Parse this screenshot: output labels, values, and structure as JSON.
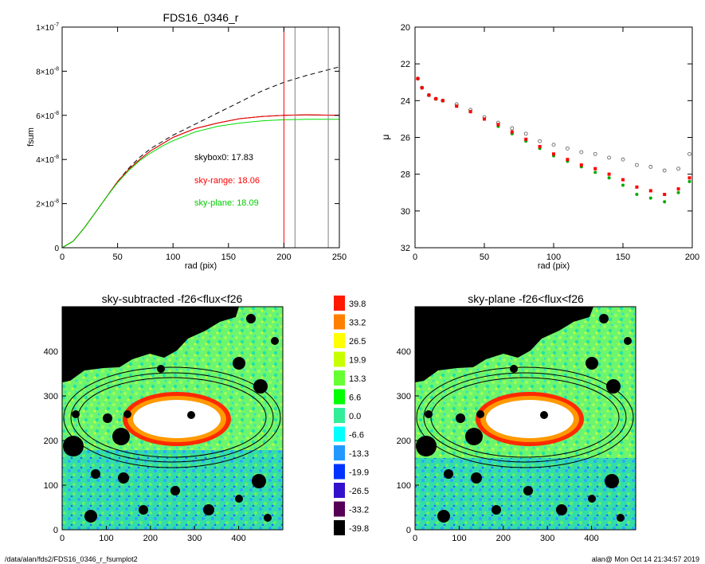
{
  "footer": {
    "path": "/data/alan/fds2/FDS16_0346_r_fsumplot2",
    "stamp": "alan@  Mon Oct 14 21:34:57 2019"
  },
  "chart_data": [
    {
      "type": "line",
      "title": "FDS16_0346_r",
      "xlabel": "rad (pix)",
      "ylabel": "fsum",
      "xlim": [
        0,
        250
      ],
      "ylim": [
        0,
        1e-07
      ],
      "xticks": [
        0,
        50,
        100,
        150,
        200,
        250
      ],
      "ytick_values": [
        0,
        2e-08,
        4e-08,
        6e-08,
        8e-08,
        1e-07
      ],
      "ytick_mantissas": [
        "0",
        "2×10",
        "4×10",
        "6×10",
        "8×10",
        "1×10"
      ],
      "ytick_exponent": "-8",
      "ytick_exponent_top": "-7",
      "vlines": [
        {
          "x": 200,
          "color": "#ff0000"
        },
        {
          "x": 210,
          "color": "#808080"
        },
        {
          "x": 240,
          "color": "#808080"
        }
      ],
      "annotations": [
        {
          "text": "skybox0: 17.83",
          "color": "#000000"
        },
        {
          "text": "sky-range: 18.06",
          "color": "#ff0000"
        },
        {
          "text": "sky-plane: 18.09",
          "color": "#00cc00"
        }
      ],
      "series": [
        {
          "style": "dashed",
          "color": "#000000",
          "x": [
            0,
            10,
            20,
            30,
            40,
            50,
            60,
            70,
            80,
            90,
            100,
            120,
            140,
            160,
            180,
            200,
            220,
            250
          ],
          "y": [
            0,
            3e-09,
            9e-09,
            1.6e-08,
            2.3e-08,
            3e-08,
            3.6e-08,
            4.1e-08,
            4.5e-08,
            4.8e-08,
            5.1e-08,
            5.6e-08,
            6.1e-08,
            6.6e-08,
            7.1e-08,
            7.5e-08,
            7.8e-08,
            8.2e-08
          ]
        },
        {
          "style": "solid",
          "color": "#000000",
          "x": [
            0,
            10,
            20,
            30,
            40,
            50,
            60,
            70,
            80,
            90,
            100,
            120,
            140,
            160,
            180,
            200,
            220,
            250
          ],
          "y": [
            0,
            3e-09,
            9e-09,
            1.6e-08,
            2.3e-08,
            3e-08,
            3.55e-08,
            4e-08,
            4.4e-08,
            4.7e-08,
            5e-08,
            5.4e-08,
            5.65e-08,
            5.85e-08,
            5.95e-08,
            6e-08,
            6.02e-08,
            6e-08
          ]
        },
        {
          "style": "solid",
          "color": "#ff0000",
          "x": [
            0,
            10,
            20,
            30,
            40,
            50,
            60,
            70,
            80,
            90,
            100,
            120,
            140,
            160,
            180,
            200,
            220,
            250
          ],
          "y": [
            0,
            3e-09,
            9e-09,
            1.6e-08,
            2.3e-08,
            3e-08,
            3.55e-08,
            4e-08,
            4.4e-08,
            4.7e-08,
            5e-08,
            5.4e-08,
            5.65e-08,
            5.85e-08,
            5.95e-08,
            6e-08,
            6.03e-08,
            6e-08
          ]
        },
        {
          "style": "solid",
          "color": "#00dd00",
          "x": [
            0,
            10,
            20,
            30,
            40,
            50,
            60,
            70,
            80,
            90,
            100,
            120,
            140,
            160,
            180,
            200,
            220,
            250
          ],
          "y": [
            0,
            3e-09,
            9e-09,
            1.6e-08,
            2.3e-08,
            2.95e-08,
            3.5e-08,
            3.95e-08,
            4.3e-08,
            4.6e-08,
            4.85e-08,
            5.25e-08,
            5.5e-08,
            5.65e-08,
            5.75e-08,
            5.8e-08,
            5.82e-08,
            5.82e-08
          ]
        }
      ]
    },
    {
      "type": "scatter",
      "xlabel": "rad (pix)",
      "ylabel": "μ",
      "xlim": [
        0,
        200
      ],
      "ylim": [
        32,
        20
      ],
      "xticks": [
        0,
        50,
        100,
        150,
        200
      ],
      "yticks": [
        20,
        22,
        24,
        26,
        28,
        30,
        32
      ],
      "series": [
        {
          "marker": "open-circle",
          "color": "#555555",
          "x": [
            2,
            5,
            10,
            15,
            20,
            30,
            40,
            50,
            60,
            70,
            80,
            90,
            100,
            110,
            120,
            130,
            140,
            150,
            160,
            170,
            180,
            190,
            198
          ],
          "y": [
            22.8,
            23.3,
            23.7,
            23.9,
            24.0,
            24.2,
            24.5,
            24.9,
            25.2,
            25.5,
            25.8,
            26.2,
            26.4,
            26.6,
            26.8,
            26.9,
            27.1,
            27.2,
            27.5,
            27.6,
            27.8,
            27.7,
            26.9
          ]
        },
        {
          "marker": "filled-circle",
          "color": "#00aa00",
          "x": [
            2,
            5,
            10,
            15,
            20,
            30,
            40,
            50,
            60,
            70,
            80,
            90,
            100,
            110,
            120,
            130,
            140,
            150,
            160,
            170,
            180,
            190,
            198
          ],
          "y": [
            22.8,
            23.3,
            23.7,
            23.9,
            24.0,
            24.3,
            24.6,
            25.0,
            25.4,
            25.8,
            26.2,
            26.6,
            27.0,
            27.3,
            27.6,
            27.9,
            28.2,
            28.6,
            29.1,
            29.3,
            29.5,
            29.0,
            28.4
          ]
        },
        {
          "marker": "filled-square",
          "color": "#ff0000",
          "x": [
            2,
            5,
            10,
            15,
            20,
            30,
            40,
            50,
            60,
            70,
            80,
            90,
            100,
            110,
            120,
            130,
            140,
            150,
            160,
            170,
            180,
            190,
            198
          ],
          "y": [
            22.8,
            23.3,
            23.7,
            23.9,
            24.0,
            24.3,
            24.6,
            25.0,
            25.3,
            25.7,
            26.1,
            26.5,
            26.9,
            27.2,
            27.5,
            27.7,
            28.0,
            28.3,
            28.7,
            28.9,
            29.1,
            28.8,
            28.2
          ]
        }
      ]
    },
    {
      "type": "heatmap",
      "title": "sky-subtracted -f26<flux<f26",
      "xlim": [
        0,
        500
      ],
      "ylim": [
        0,
        500
      ],
      "xticks": [
        0,
        100,
        200,
        300,
        400
      ],
      "yticks": [
        0,
        100,
        200,
        300,
        400
      ]
    },
    {
      "type": "heatmap",
      "title": "sky-plane -f26<flux<f26",
      "xlim": [
        0,
        500
      ],
      "ylim": [
        0,
        500
      ],
      "xticks": [
        0,
        100,
        200,
        300,
        400
      ],
      "yticks": [
        0,
        100,
        200,
        300,
        400
      ]
    },
    {
      "type": "colorbar",
      "labels": [
        "39.8",
        "33.2",
        "26.5",
        "19.9",
        "13.3",
        "6.6",
        "0.0",
        "-6.6",
        "-13.3",
        "-19.9",
        "-26.5",
        "-33.2",
        "-39.8"
      ],
      "colors": [
        "#ff1a00",
        "#ff8000",
        "#ffff00",
        "#c8ff00",
        "#66ff33",
        "#00ff00",
        "#33ee99",
        "#00ffff",
        "#2299ff",
        "#0033ff",
        "#3311cc",
        "#550055",
        "#000000"
      ]
    }
  ]
}
